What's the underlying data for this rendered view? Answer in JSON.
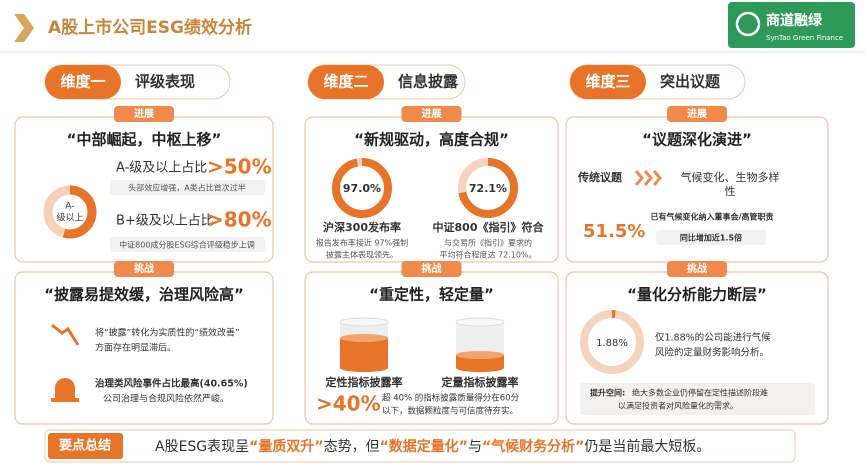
{
  "header": {
    "title": "A股上市公司ESG绩效分析",
    "logo": {
      "name": "商道融绿",
      "subtitle": "SynTao Green Finance"
    }
  },
  "columns": [
    {
      "dimension": "维度一",
      "topic": "评级表现",
      "progress": {
        "tag": "进展",
        "heading": "“中部崛起，中枢上移”",
        "donut_label": [
          "A-",
          "级以上"
        ],
        "items": [
          {
            "label": "A-级及以上占比",
            "value": ">50%",
            "note": "头部效应增强，A类占比首次过半"
          },
          {
            "label": "B+级及以上占比",
            "value": ">80%",
            "note": "中证800成分股ESG综合评级稳步上调"
          }
        ]
      },
      "challenge": {
        "tag": "挑战",
        "heading": "“披露易提效缓，治理风险高”",
        "item1": [
          "将“披露”转化为实质性的“绩效改善”",
          "方面存在明显滞后。"
        ],
        "item2_title": "治理类风险事件占比最高(40.65%)",
        "item2_text": "公司治理与合规风险依然严峻。"
      }
    },
    {
      "dimension": "维度二",
      "topic": "信息披露",
      "progress": {
        "tag": "进展",
        "heading": "“新规驱动，高度合规”",
        "donuts": [
          {
            "value": 97.0,
            "label": "97.0%",
            "title": "沪深300发布率",
            "desc": [
              "报告发布率接近 97%强制",
              "披露主体表现领先。"
            ]
          },
          {
            "value": 72.1,
            "label": "72.1%",
            "title": "中证800《指引》符合",
            "desc": [
              "与交易所《指引》要求的",
              "平均符合程度达 72.10%。"
            ]
          }
        ]
      },
      "challenge": {
        "tag": "挑战",
        "heading": "“重定性，轻定量”",
        "labels": [
          "定性指标披露率",
          "定量指标披露率"
        ],
        "big": ">40%",
        "text": [
          "超 40% 的指标披露质量得分在60分",
          "以下，数据颗粒度与可信度待夯实。"
        ]
      }
    },
    {
      "dimension": "维度三",
      "topic": "突出议题",
      "progress": {
        "tag": "进展",
        "heading": "“议题深化演进”",
        "from": "传统议题",
        "to": [
          "气候变化、生物多样",
          "性"
        ],
        "big": "51.5%",
        "note": "已有气候变化纳入董事会/高管职责",
        "growth": "同比增加近1.5倍"
      },
      "challenge": {
        "tag": "挑战",
        "heading": "“量化分析能力断层”",
        "donut": {
          "value": 1.88,
          "label": "1.88%"
        },
        "text": [
          "仅1.88%的公司能进行气候",
          "风险的定量财务影响分析。"
        ],
        "tip_label": "提升空间:",
        "tip": [
          "绝大多数企业仍停留在定性描述阶段难",
          "以满足投资者对风险量化的需求。"
        ]
      }
    }
  ],
  "summary": {
    "label": "要点总结",
    "parts": [
      "A股ESG表现呈",
      "“量质双升”",
      "态势，但",
      "“数据定量化”",
      "与",
      "“气候财务分析”",
      "仍是当前最大短板。"
    ]
  }
}
